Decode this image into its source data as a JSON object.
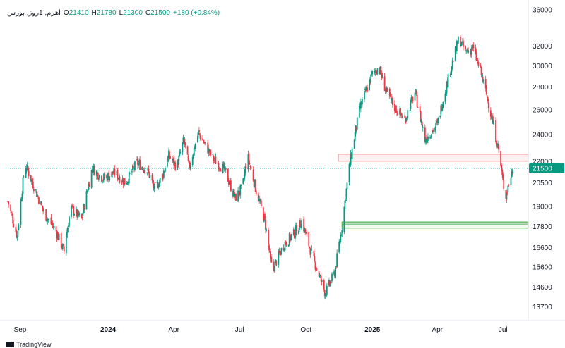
{
  "legend": {
    "symbol": "اهرم, 1روز, بورس",
    "open_label": "O",
    "open": "21410",
    "high_label": "H",
    "high": "21780",
    "low_label": "L",
    "low": "21300",
    "close_label": "C",
    "close": "21500",
    "change": "+180 (+0.84%)"
  },
  "watermark": "TradingView",
  "colors": {
    "up": "#089981",
    "down": "#f23645",
    "zone_res": "#f7a9ae",
    "zone_sup": "#4caf50",
    "price_line": "#089981",
    "axis_text": "#131722"
  },
  "chart_data": {
    "type": "candlestick",
    "title": "",
    "last_price": 21500,
    "y_ticks": [
      13700,
      14600,
      15600,
      16600,
      17800,
      19000,
      20500,
      22000,
      24000,
      26000,
      28000,
      30000,
      32000,
      36000
    ],
    "ylim": [
      13100,
      36500
    ],
    "x_ticks": [
      {
        "label": "Sep",
        "date": "2023-09-01"
      },
      {
        "label": "2024",
        "date": "2024-01-01"
      },
      {
        "label": "Apr",
        "date": "2024-04-01"
      },
      {
        "label": "Jul",
        "date": "2024-07-01"
      },
      {
        "label": "Oct",
        "date": "2024-10-01"
      },
      {
        "label": "2025",
        "date": "2025-01-01"
      },
      {
        "label": "Apr",
        "date": "2025-04-01"
      },
      {
        "label": "Jul",
        "date": "2025-07-01"
      }
    ],
    "zones": [
      {
        "kind": "resistance",
        "low": 22000,
        "high": 22500,
        "start": "2024-11-15"
      },
      {
        "kind": "support",
        "low": 17700,
        "high": 18050,
        "start": "2024-11-20"
      }
    ],
    "price_path": [
      [
        "2023-08-15",
        19300
      ],
      [
        "2023-08-28",
        17200
      ],
      [
        "2023-09-08",
        21800
      ],
      [
        "2023-09-20",
        20300
      ],
      [
        "2023-10-05",
        18500
      ],
      [
        "2023-10-20",
        17600
      ],
      [
        "2023-11-01",
        16400
      ],
      [
        "2023-11-10",
        18900
      ],
      [
        "2023-11-25",
        18200
      ],
      [
        "2023-12-10",
        21500
      ],
      [
        "2023-12-25",
        20800
      ],
      [
        "2024-01-10",
        21200
      ],
      [
        "2024-01-25",
        20500
      ],
      [
        "2024-02-10",
        21900
      ],
      [
        "2024-02-25",
        21300
      ],
      [
        "2024-03-05",
        20100
      ],
      [
        "2024-03-15",
        20800
      ],
      [
        "2024-03-25",
        22400
      ],
      [
        "2024-04-05",
        21600
      ],
      [
        "2024-04-15",
        23600
      ],
      [
        "2024-04-22",
        21500
      ],
      [
        "2024-05-05",
        24100
      ],
      [
        "2024-05-25",
        22200
      ],
      [
        "2024-06-10",
        21400
      ],
      [
        "2024-06-25",
        19500
      ],
      [
        "2024-07-05",
        20200
      ],
      [
        "2024-07-12",
        22400
      ],
      [
        "2024-07-25",
        19800
      ],
      [
        "2024-08-05",
        18100
      ],
      [
        "2024-08-15",
        15400
      ],
      [
        "2024-09-01",
        16800
      ],
      [
        "2024-09-15",
        17400
      ],
      [
        "2024-09-25",
        18100
      ],
      [
        "2024-10-10",
        16100
      ],
      [
        "2024-10-20",
        15100
      ],
      [
        "2024-10-28",
        14300
      ],
      [
        "2024-11-10",
        15300
      ],
      [
        "2024-11-20",
        17800
      ],
      [
        "2024-12-01",
        21900
      ],
      [
        "2024-12-15",
        26200
      ],
      [
        "2025-01-01",
        29200
      ],
      [
        "2025-01-10",
        29900
      ],
      [
        "2025-01-20",
        27600
      ],
      [
        "2025-02-01",
        26200
      ],
      [
        "2025-02-15",
        25200
      ],
      [
        "2025-03-01",
        27500
      ],
      [
        "2025-03-15",
        23600
      ],
      [
        "2025-04-01",
        24800
      ],
      [
        "2025-04-15",
        28500
      ],
      [
        "2025-05-01",
        32800
      ],
      [
        "2025-05-10",
        31400
      ],
      [
        "2025-05-20",
        31800
      ],
      [
        "2025-06-01",
        29200
      ],
      [
        "2025-06-10",
        26800
      ],
      [
        "2025-06-20",
        24100
      ],
      [
        "2025-06-25",
        22800
      ],
      [
        "2025-07-01",
        20500
      ],
      [
        "2025-07-05",
        19700
      ],
      [
        "2025-07-15",
        21500
      ]
    ]
  }
}
